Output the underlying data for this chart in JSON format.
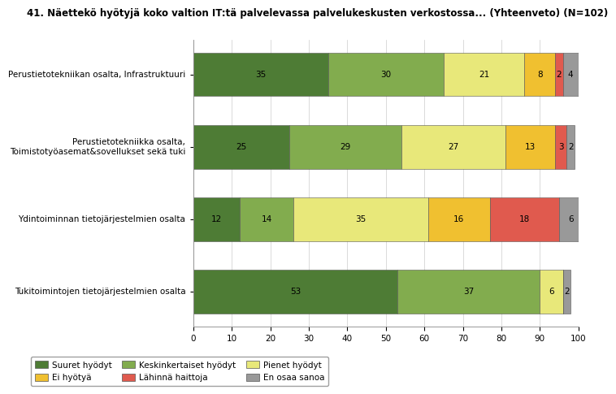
{
  "title": "41. Näettekö hyötyjä koko valtion IT:tä palvelevassa palvelukeskusten verkostossa... (Yhteenveto) (N=102)",
  "categories": [
    "Perustietotekniikan osalta, Infrastruktuuri",
    "Perustietotekniikka osalta,\nToimistotyöasemat&sovellukset sekä tuki",
    "Ydintoiminnan tietojärjestelmien osalta",
    "Tukitoimintojen tietojärjestelmien osalta"
  ],
  "series": [
    {
      "name": "Suuret hyödyt",
      "color": "#4e7c35",
      "values": [
        35,
        25,
        12,
        53
      ]
    },
    {
      "name": "Keskinkertaiset hyödyt",
      "color": "#82ac4e",
      "values": [
        30,
        29,
        14,
        37
      ]
    },
    {
      "name": "Pienet hyödyt",
      "color": "#e8e87a",
      "values": [
        21,
        27,
        35,
        6
      ]
    },
    {
      "name": "Ei hyötyä",
      "color": "#f0c030",
      "values": [
        8,
        13,
        16,
        0
      ]
    },
    {
      "name": "Lähinnä haittoja",
      "color": "#e05a4e",
      "values": [
        2,
        3,
        18,
        0
      ]
    },
    {
      "name": "En osaa sanoa",
      "color": "#999999",
      "values": [
        4,
        2,
        6,
        2
      ]
    }
  ],
  "legend_order": [
    0,
    3,
    1,
    4,
    2,
    5
  ],
  "xlim": [
    0,
    100
  ],
  "bar_height": 0.6,
  "background_color": "#ffffff",
  "title_fontsize": 8.5,
  "label_fontsize": 7.5,
  "legend_fontsize": 7.5
}
